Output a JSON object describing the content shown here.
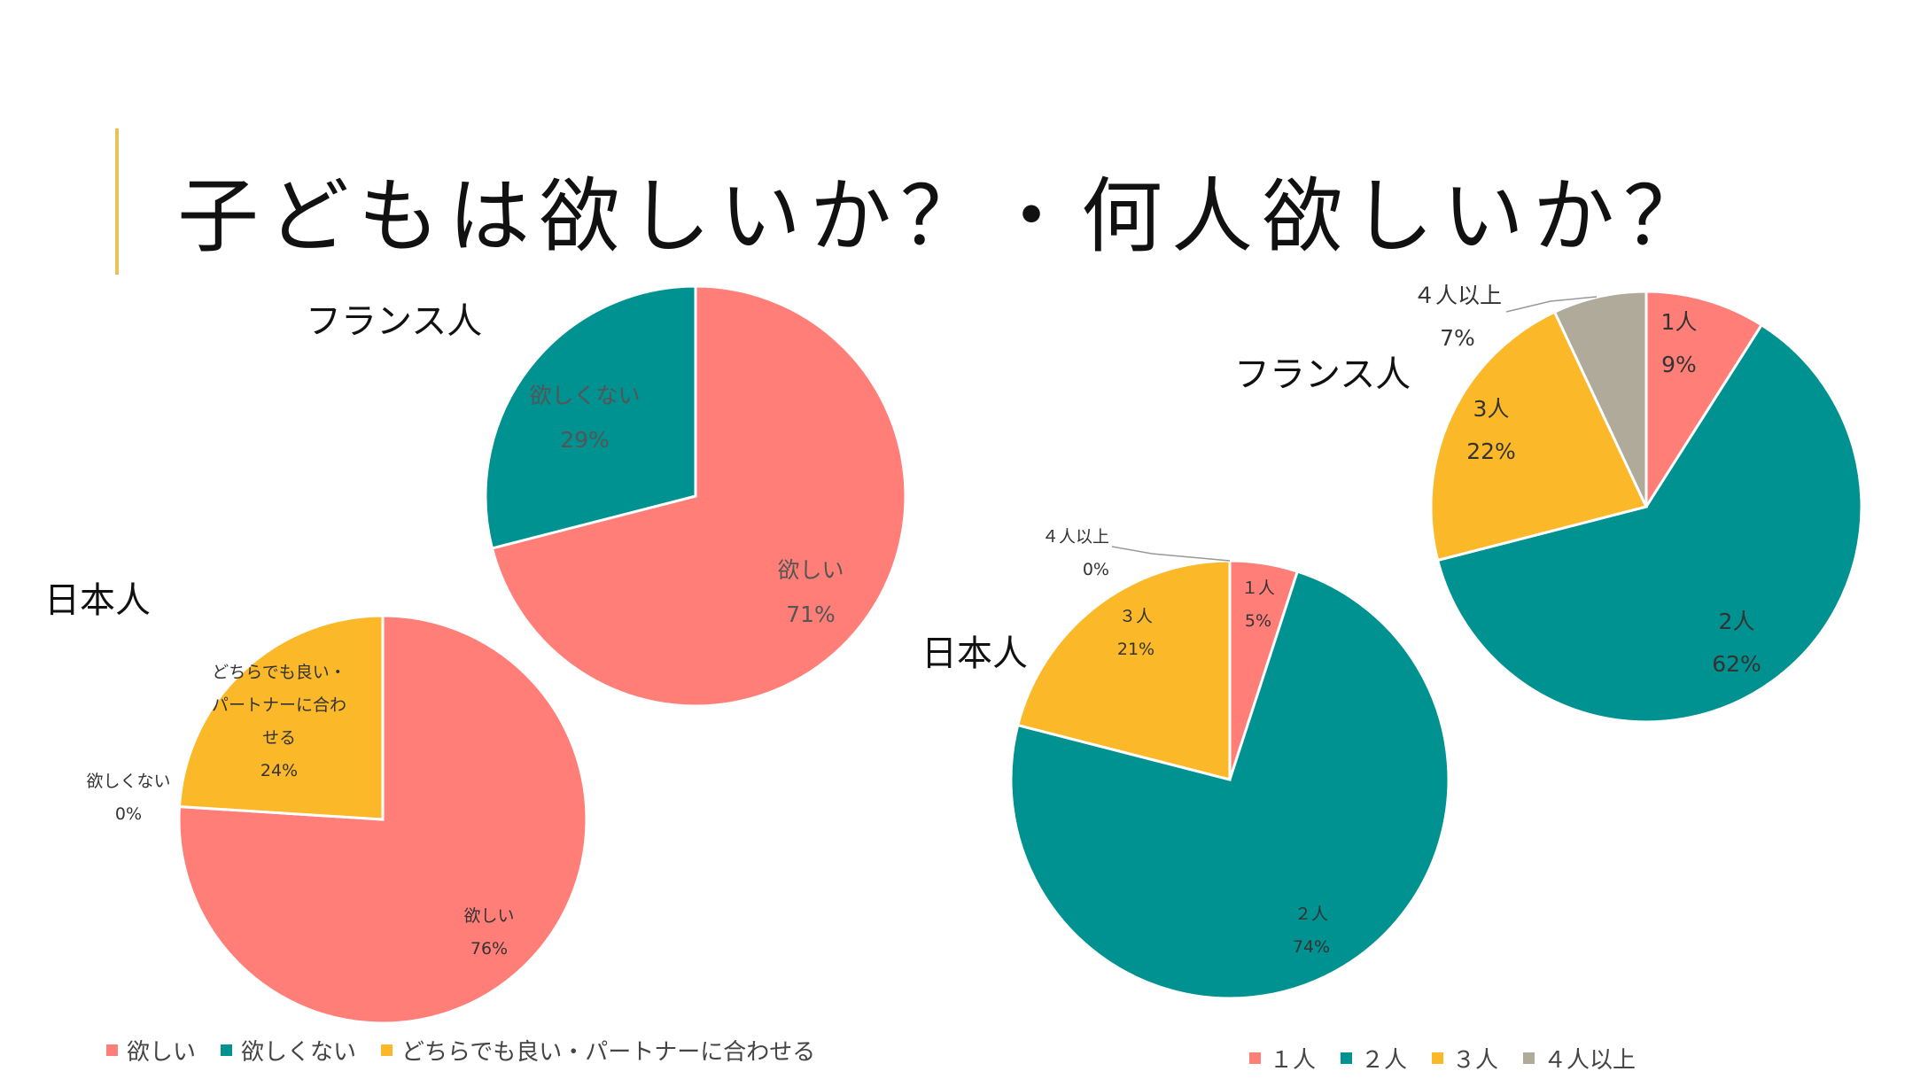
{
  "title": "子どもは欲しいか？・何人欲しいか？",
  "colors": {
    "coral": "#FF7F78",
    "teal": "#009191",
    "gold": "#FBB829",
    "gray": "#AFAA9A",
    "accent": "#E6C35A"
  },
  "labels": {
    "france_left": "フランス人",
    "japan_left": "日本人",
    "france_right": "フランス人",
    "japan_right": "日本人"
  },
  "legend_left": [
    "欲しい",
    "欲しくない",
    "どちらでも良い・パートナーに合わせる"
  ],
  "legend_right": [
    "１人",
    "２人",
    "３人",
    "４人以上"
  ],
  "chart_data": [
    {
      "type": "pie",
      "group": "フランス人",
      "question": "子どもは欲しいか",
      "slices": [
        {
          "label": "欲しい",
          "value": 71,
          "value_label": "71%",
          "color": "#FF7F78"
        },
        {
          "label": "欲しくない",
          "value": 29,
          "value_label": "29%",
          "color": "#009191"
        }
      ]
    },
    {
      "type": "pie",
      "group": "日本人",
      "question": "子どもは欲しいか",
      "slices": [
        {
          "label": "欲しい",
          "value": 76,
          "value_label": "76%",
          "color": "#FF7F78"
        },
        {
          "label": "欲しくない",
          "value": 0,
          "value_label": "0%",
          "color": "#009191"
        },
        {
          "label": "どちらでも良い・パートナーに合わせる",
          "value": 24,
          "value_label": "24%",
          "color": "#FBB829"
        }
      ]
    },
    {
      "type": "pie",
      "group": "日本人",
      "question": "何人欲しいか",
      "slices": [
        {
          "label": "１人",
          "value": 5,
          "value_label": "5%",
          "color": "#FF7F78"
        },
        {
          "label": "２人",
          "value": 74,
          "value_label": "74%",
          "color": "#009191"
        },
        {
          "label": "３人",
          "value": 21,
          "value_label": "21%",
          "color": "#FBB829"
        },
        {
          "label": "４人以上",
          "value": 0,
          "value_label": "0%",
          "color": "#AFAA9A"
        }
      ]
    },
    {
      "type": "pie",
      "group": "フランス人",
      "question": "何人欲しいか",
      "slices": [
        {
          "label": "1人",
          "value": 9,
          "value_label": "9%",
          "color": "#FF7F78"
        },
        {
          "label": "2人",
          "value": 62,
          "value_label": "62%",
          "color": "#009191"
        },
        {
          "label": "3人",
          "value": 22,
          "value_label": "22%",
          "color": "#FBB829"
        },
        {
          "label": "４人以上",
          "value": 7,
          "value_label": "7%",
          "color": "#AFAA9A"
        }
      ]
    }
  ]
}
